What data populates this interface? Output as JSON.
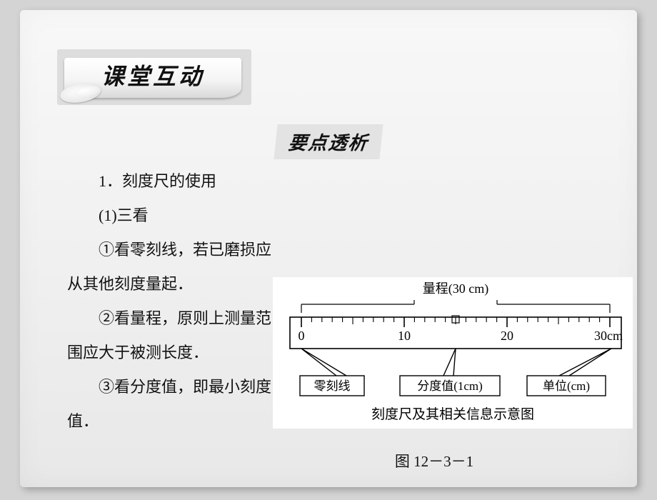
{
  "banner": {
    "title": "课堂互动"
  },
  "section_title": "要点透析",
  "body": {
    "p1": "1．刻度尺的使用",
    "p2": "(1)三看",
    "p3": "①看零刻线，若已磨损应",
    "p4": "从其他刻度量起．",
    "p5": "②看量程，原则上测量范",
    "p6": "围应大于被测长度．",
    "p7": "③看分度值，即最小刻度",
    "p8": "值．"
  },
  "figure_label": "图 12－3－1",
  "diagram": {
    "caption": "刻度尺及其相关信息示意图",
    "range_label": "量程(30 cm)",
    "ticks": {
      "major": [
        "0",
        "10",
        "20",
        "30"
      ],
      "unit_suffix": "cm"
    },
    "ruler": {
      "range_cm": 30,
      "division_cm": 1
    },
    "callouts": {
      "zero": "零刻线",
      "division": "分度值(1cm)",
      "unit": "单位(cm)"
    },
    "colors": {
      "bg": "#ffffff",
      "stroke": "#000000",
      "text": "#000000",
      "ruler_fill": "#ffffff"
    },
    "fontsize_pt": 15,
    "stroke_width": 1.6
  }
}
